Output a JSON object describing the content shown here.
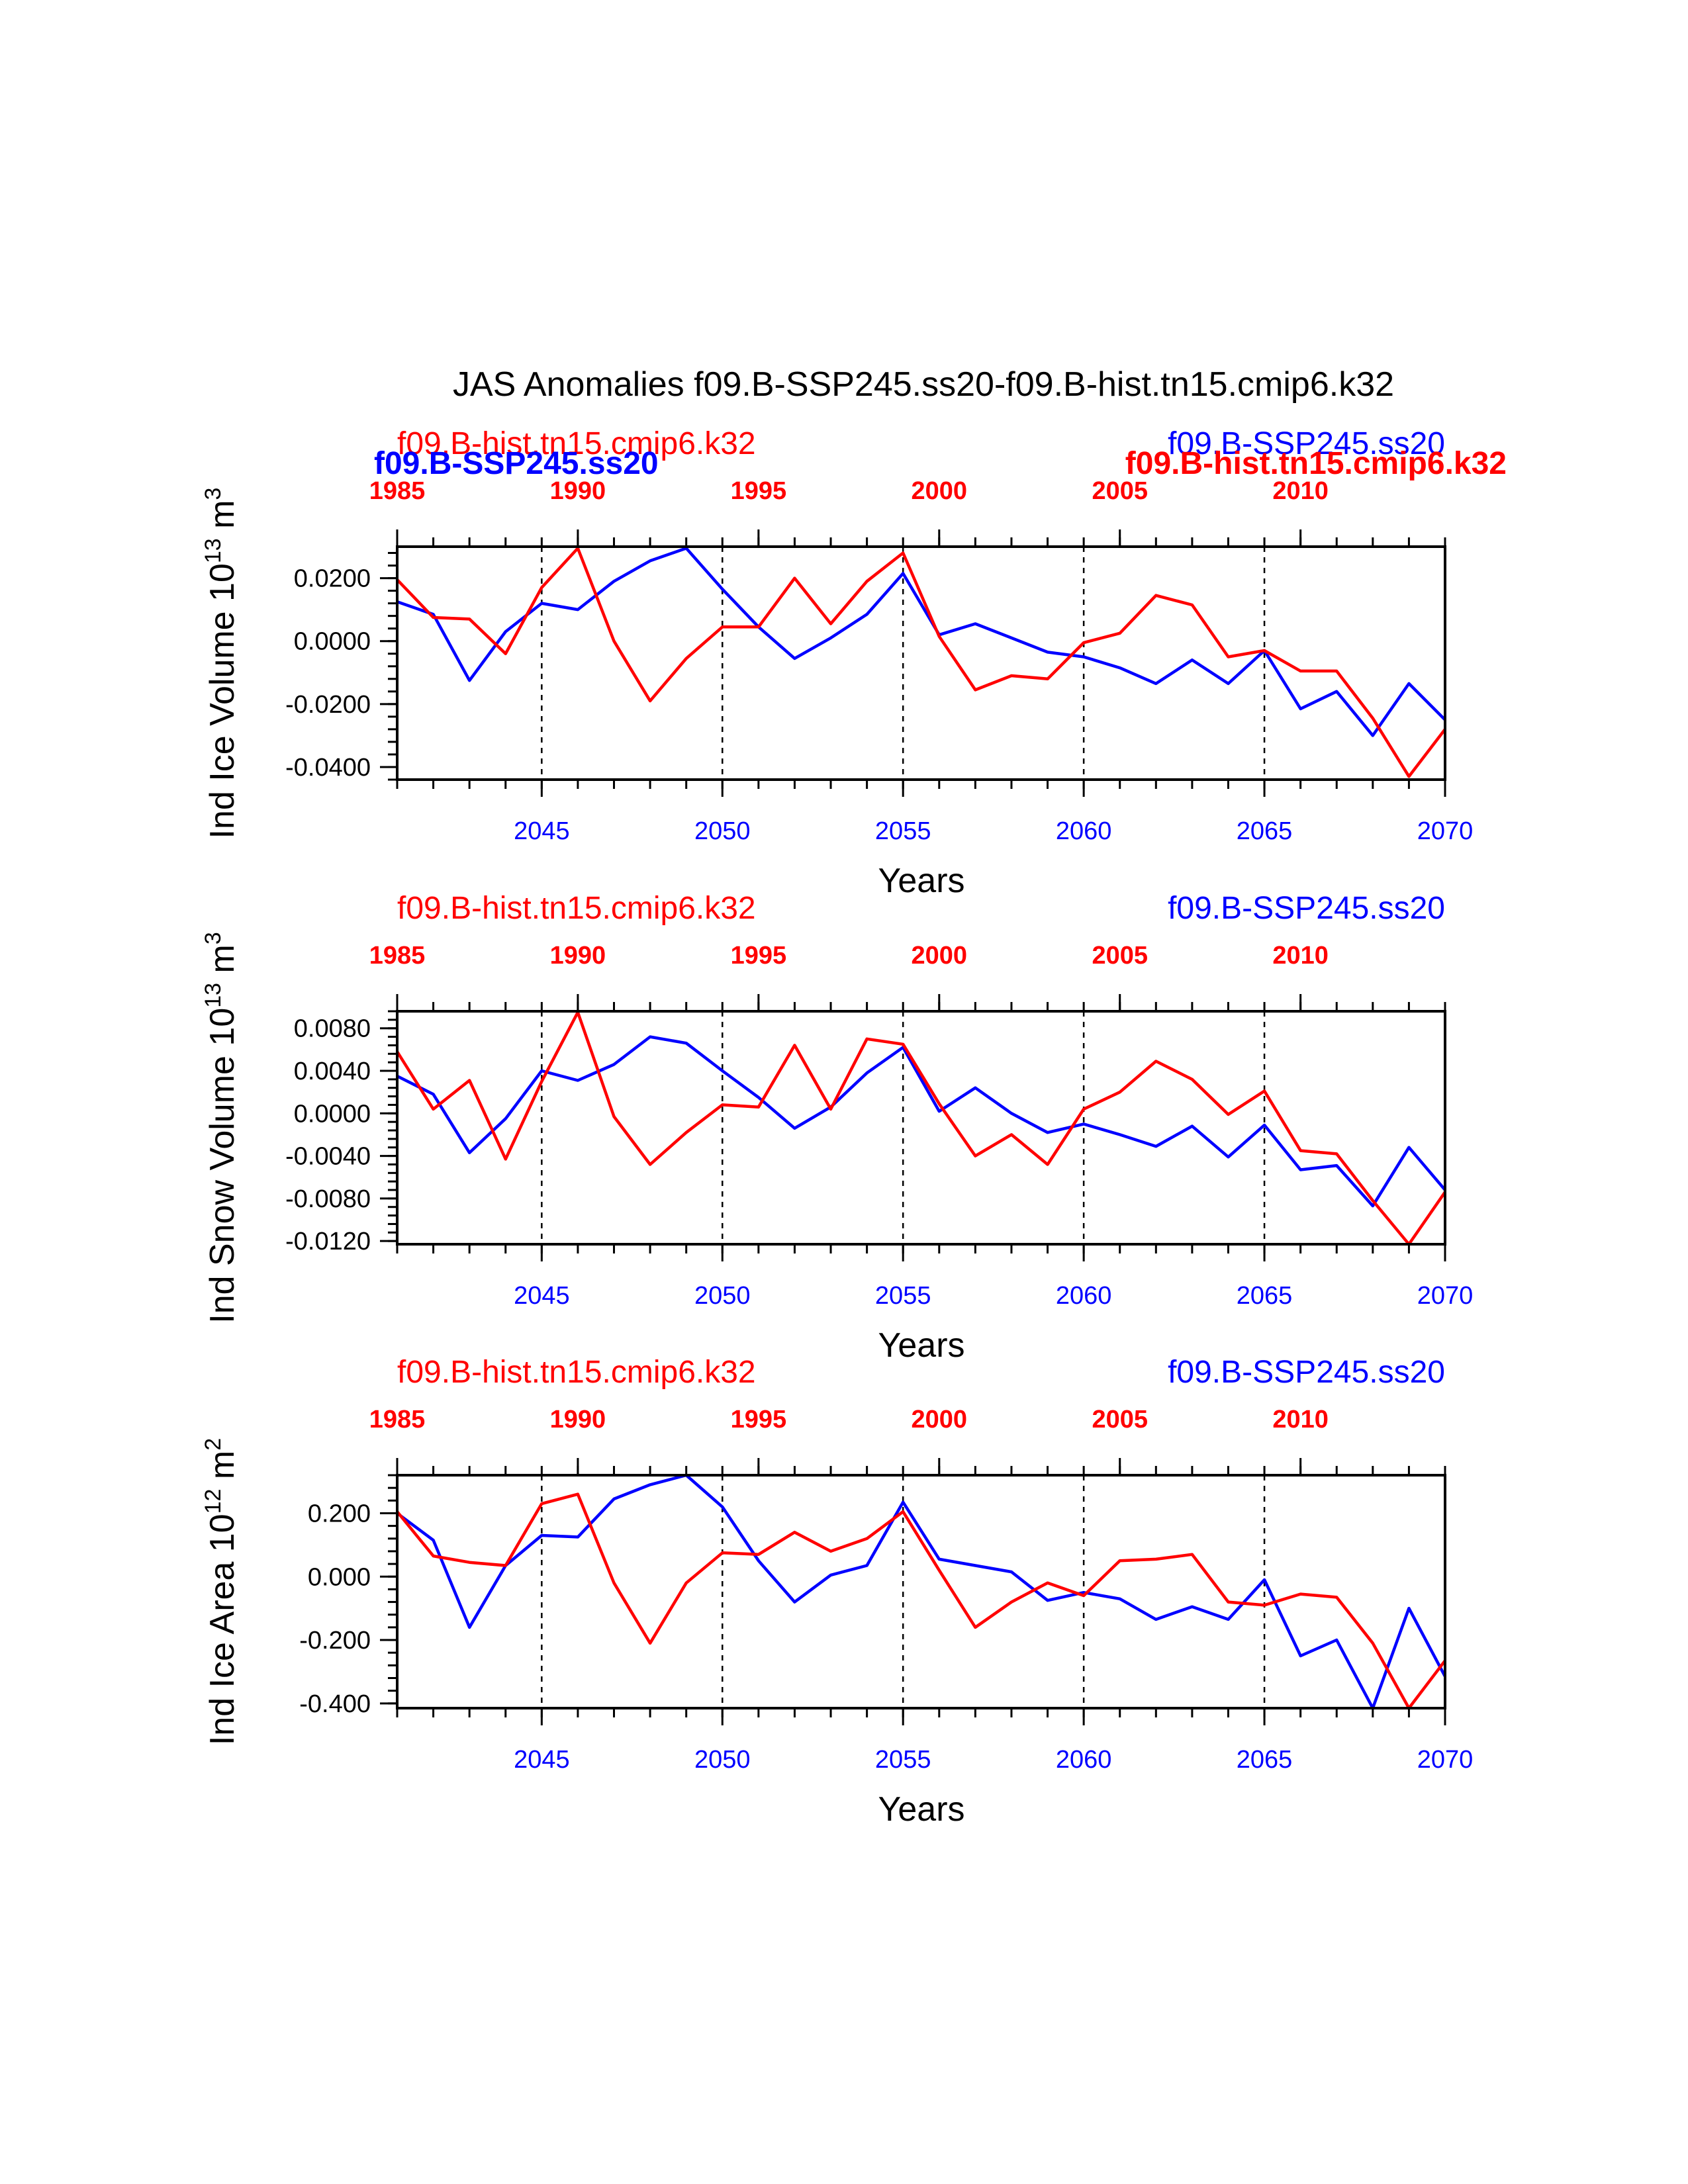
{
  "title": "JAS Anomalies f09.B-SSP245.ss20-f09.B-hist.tn15.cmip6.k32",
  "colors": {
    "blue": "#0000ff",
    "red": "#ff0000",
    "axis": "#000000"
  },
  "overlap_labels": {
    "blue_bold_left": "f09.B-SSP245.ss20",
    "red_bold_right": "f09.B-hist.tn15.cmip6.k32"
  },
  "chart_data": [
    {
      "type": "line",
      "ylabel_main": "Ind Ice Volume 10",
      "ylabel_exp": "13",
      "ylabel_unit": " m",
      "ylabel_unit_exp": "3",
      "xlabel": "Years",
      "top_left_label": "f09.B-hist.tn15.cmip6.k32",
      "top_right_label": "f09.B-SSP245.ss20",
      "ylim": [
        -0.044,
        0.03
      ],
      "yticks": [
        "0.0200",
        "0.0000",
        "-0.0200",
        "-0.0400"
      ],
      "ytick_values": [
        0.02,
        0.0,
        -0.02,
        -0.04
      ],
      "xlim_bottom": [
        2041,
        2070
      ],
      "xticks_bottom": [
        "2045",
        "2050",
        "2055",
        "2060",
        "2065",
        "2070"
      ],
      "xtick_values_bottom": [
        2045,
        2050,
        2055,
        2060,
        2065,
        2070
      ],
      "xlim_top": [
        1985,
        2014
      ],
      "xticks_top": [
        "1985",
        "1990",
        "1995",
        "2000",
        "2005",
        "2010"
      ],
      "xtick_values_top": [
        1985,
        1990,
        1995,
        2000,
        2005,
        2010
      ],
      "series": [
        {
          "name": "f09.B-SSP245.ss20",
          "color": "#0000ff",
          "x": [
            2041,
            2042,
            2043,
            2044,
            2045,
            2046,
            2047,
            2048,
            2049,
            2050,
            2051,
            2052,
            2053,
            2054,
            2055,
            2056,
            2057,
            2058,
            2059,
            2060,
            2061,
            2062,
            2063,
            2064,
            2065,
            2066,
            2067,
            2068,
            2069,
            2070
          ],
          "values": [
            0.0125,
            0.0085,
            -0.0125,
            0.003,
            0.012,
            0.01,
            0.019,
            0.0255,
            0.0295,
            0.0165,
            0.0045,
            -0.0055,
            0.001,
            0.0085,
            0.0215,
            0.002,
            0.0055,
            0.001,
            -0.0035,
            -0.005,
            -0.0085,
            -0.0135,
            -0.006,
            -0.0135,
            -0.003,
            -0.0215,
            -0.016,
            -0.03,
            -0.0135,
            -0.025
          ]
        },
        {
          "name": "f09.B-hist.tn15.cmip6.k32",
          "color": "#ff0000",
          "x": [
            2041,
            2042,
            2043,
            2044,
            2045,
            2046,
            2047,
            2048,
            2049,
            2050,
            2051,
            2052,
            2053,
            2054,
            2055,
            2056,
            2057,
            2058,
            2059,
            2060,
            2061,
            2062,
            2063,
            2064,
            2065,
            2066,
            2067,
            2068,
            2069,
            2070
          ],
          "values": [
            0.0195,
            0.0075,
            0.007,
            -0.004,
            0.017,
            0.0295,
            0.0,
            -0.019,
            -0.0055,
            0.0045,
            0.0045,
            0.02,
            0.0055,
            0.019,
            0.028,
            0.0015,
            -0.0155,
            -0.011,
            -0.012,
            -0.0005,
            0.0025,
            0.0145,
            0.0115,
            -0.005,
            -0.003,
            -0.0095,
            -0.0095,
            -0.0245,
            -0.043,
            -0.028
          ]
        }
      ]
    },
    {
      "type": "line",
      "ylabel_main": "Ind Snow Volume 10",
      "ylabel_exp": "13",
      "ylabel_unit": " m",
      "ylabel_unit_exp": "3",
      "xlabel": "Years",
      "top_left_label": "f09.B-hist.tn15.cmip6.k32",
      "top_right_label": "f09.B-SSP245.ss20",
      "ylim": [
        -0.0123,
        0.0096
      ],
      "yticks": [
        "0.0080",
        "0.0040",
        "0.0000",
        "-0.0040",
        "-0.0080",
        "-0.0120"
      ],
      "ytick_values": [
        0.008,
        0.004,
        0.0,
        -0.004,
        -0.008,
        -0.012
      ],
      "xlim_bottom": [
        2041,
        2070
      ],
      "xticks_bottom": [
        "2045",
        "2050",
        "2055",
        "2060",
        "2065",
        "2070"
      ],
      "xtick_values_bottom": [
        2045,
        2050,
        2055,
        2060,
        2065,
        2070
      ],
      "xlim_top": [
        1985,
        2014
      ],
      "xticks_top": [
        "1985",
        "1990",
        "1995",
        "2000",
        "2005",
        "2010"
      ],
      "xtick_values_top": [
        1985,
        1990,
        1995,
        2000,
        2005,
        2010
      ],
      "series": [
        {
          "name": "f09.B-SSP245.ss20",
          "color": "#0000ff",
          "x": [
            2041,
            2042,
            2043,
            2044,
            2045,
            2046,
            2047,
            2048,
            2049,
            2050,
            2051,
            2052,
            2053,
            2054,
            2055,
            2056,
            2057,
            2058,
            2059,
            2060,
            2061,
            2062,
            2063,
            2064,
            2065,
            2066,
            2067,
            2068,
            2069,
            2070
          ],
          "values": [
            0.0035,
            0.0018,
            -0.0037,
            -0.0005,
            0.004,
            0.0031,
            0.0046,
            0.0072,
            0.0066,
            0.004,
            0.0015,
            -0.0014,
            0.0006,
            0.0038,
            0.0062,
            0.0002,
            0.0024,
            0.0,
            -0.0018,
            -0.001,
            -0.002,
            -0.0031,
            -0.0012,
            -0.0041,
            -0.0011,
            -0.0053,
            -0.0049,
            -0.0087,
            -0.0032,
            -0.0072
          ]
        },
        {
          "name": "f09.B-hist.tn15.cmip6.k32",
          "color": "#ff0000",
          "x": [
            2041,
            2042,
            2043,
            2044,
            2045,
            2046,
            2047,
            2048,
            2049,
            2050,
            2051,
            2052,
            2053,
            2054,
            2055,
            2056,
            2057,
            2058,
            2059,
            2060,
            2061,
            2062,
            2063,
            2064,
            2065,
            2066,
            2067,
            2068,
            2069,
            2070
          ],
          "values": [
            0.0058,
            0.0004,
            0.0031,
            -0.0043,
            0.003,
            0.0095,
            -0.0003,
            -0.0048,
            -0.0018,
            0.0008,
            0.0006,
            0.0064,
            0.0004,
            0.007,
            0.0065,
            0.0009,
            -0.004,
            -0.002,
            -0.0048,
            0.0004,
            0.002,
            0.0049,
            0.0032,
            -0.0001,
            0.0021,
            -0.0035,
            -0.0038,
            -0.0082,
            -0.0123,
            -0.0074
          ]
        }
      ]
    },
    {
      "type": "line",
      "ylabel_main": "Ind Ice Area 10",
      "ylabel_exp": "12",
      "ylabel_unit": " m",
      "ylabel_unit_exp": "2",
      "xlabel": "Years",
      "top_left_label": "f09.B-hist.tn15.cmip6.k32",
      "top_right_label": "f09.B-SSP245.ss20",
      "ylim": [
        -0.415,
        0.32
      ],
      "yticks": [
        "0.200",
        "0.000",
        "-0.200",
        "-0.400"
      ],
      "ytick_values": [
        0.2,
        0.0,
        -0.2,
        -0.4
      ],
      "xlim_bottom": [
        2041,
        2070
      ],
      "xticks_bottom": [
        "2045",
        "2050",
        "2055",
        "2060",
        "2065",
        "2070"
      ],
      "xtick_values_bottom": [
        2045,
        2050,
        2055,
        2060,
        2065,
        2070
      ],
      "xlim_top": [
        1985,
        2014
      ],
      "xticks_top": [
        "1985",
        "1990",
        "1995",
        "2000",
        "2005",
        "2010"
      ],
      "xtick_values_top": [
        1985,
        1990,
        1995,
        2000,
        2005,
        2010
      ],
      "series": [
        {
          "name": "f09.B-SSP245.ss20",
          "color": "#0000ff",
          "x": [
            2041,
            2042,
            2043,
            2044,
            2045,
            2046,
            2047,
            2048,
            2049,
            2050,
            2051,
            2052,
            2053,
            2054,
            2055,
            2056,
            2057,
            2058,
            2059,
            2060,
            2061,
            2062,
            2063,
            2064,
            2065,
            2066,
            2067,
            2068,
            2069,
            2070
          ],
          "values": [
            0.2,
            0.115,
            -0.16,
            0.035,
            0.13,
            0.125,
            0.245,
            0.29,
            0.32,
            0.22,
            0.05,
            -0.08,
            0.005,
            0.035,
            0.235,
            0.055,
            0.035,
            0.015,
            -0.075,
            -0.05,
            -0.07,
            -0.135,
            -0.095,
            -0.135,
            -0.01,
            -0.25,
            -0.2,
            -0.415,
            -0.1,
            -0.315
          ]
        },
        {
          "name": "f09.B-hist.tn15.cmip6.k32",
          "color": "#ff0000",
          "x": [
            2041,
            2042,
            2043,
            2044,
            2045,
            2046,
            2047,
            2048,
            2049,
            2050,
            2051,
            2052,
            2053,
            2054,
            2055,
            2056,
            2057,
            2058,
            2059,
            2060,
            2061,
            2062,
            2063,
            2064,
            2065,
            2066,
            2067,
            2068,
            2069,
            2070
          ],
          "values": [
            0.205,
            0.065,
            0.045,
            0.035,
            0.23,
            0.26,
            -0.02,
            -0.21,
            -0.02,
            0.075,
            0.07,
            0.14,
            0.08,
            0.12,
            0.205,
            0.02,
            -0.16,
            -0.08,
            -0.02,
            -0.06,
            0.05,
            0.055,
            0.07,
            -0.08,
            -0.09,
            -0.055,
            -0.065,
            -0.21,
            -0.415,
            -0.265
          ]
        }
      ]
    }
  ]
}
